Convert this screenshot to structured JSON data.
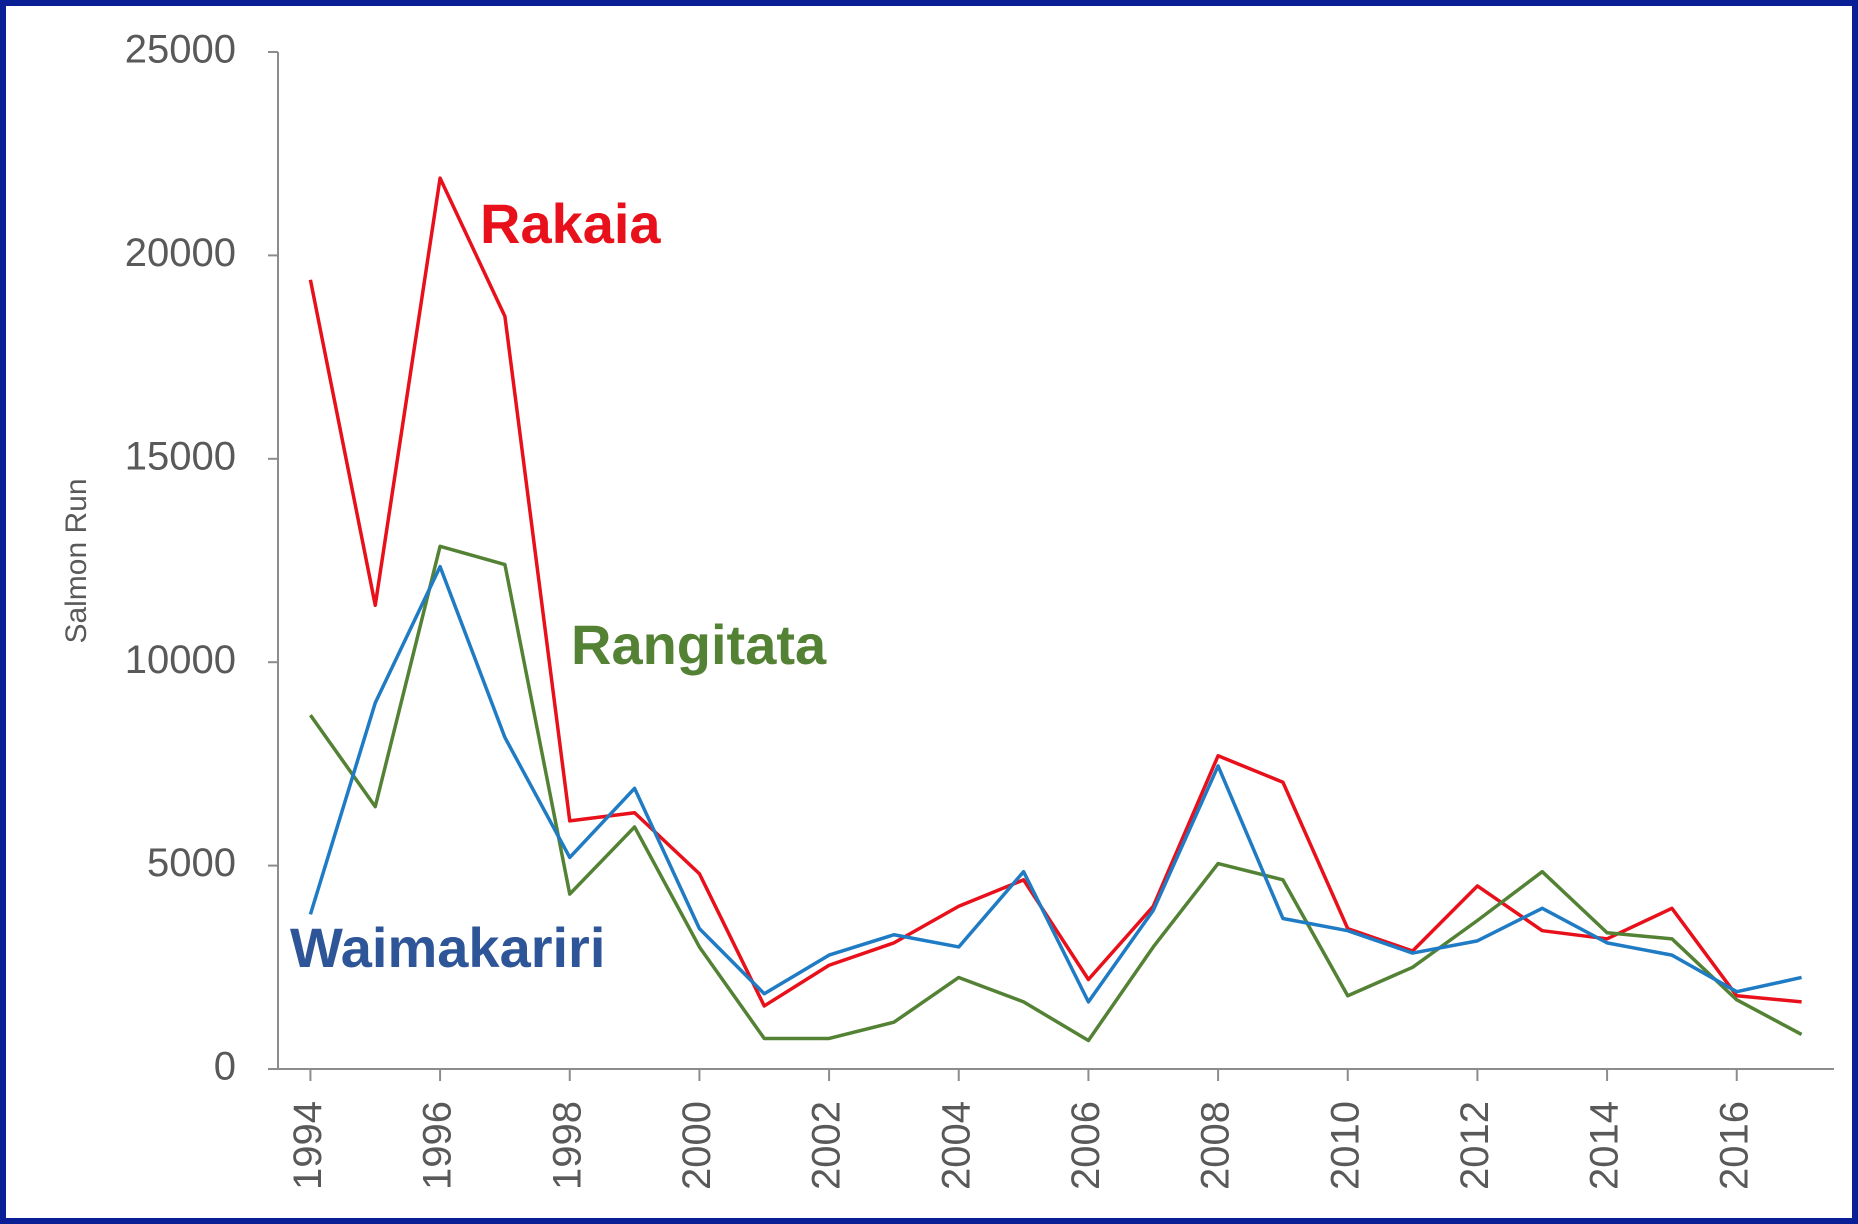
{
  "chart_data": {
    "type": "line",
    "y_label": "Salmon Run",
    "x": [
      1994,
      1995,
      1996,
      1997,
      1998,
      1999,
      2000,
      2001,
      2002,
      2003,
      2004,
      2005,
      2006,
      2007,
      2008,
      2009,
      2010,
      2011,
      2012,
      2013,
      2014,
      2015,
      2016,
      2017
    ],
    "xlim": [
      1993.5,
      2017.5
    ],
    "xticks": [
      1994,
      1996,
      1998,
      2000,
      2002,
      2004,
      2006,
      2008,
      2010,
      2012,
      2014,
      2016
    ],
    "ylim": [
      0,
      25000
    ],
    "yticks": [
      0,
      5000,
      10000,
      15000,
      20000,
      25000
    ],
    "grid": false,
    "series": [
      {
        "name": "Rakaia",
        "color": "#e8101a",
        "label_color": "#e8101a",
        "values": [
          19400,
          11400,
          21900,
          18500,
          6100,
          6300,
          4800,
          1550,
          2550,
          3100,
          4000,
          4650,
          2200,
          4000,
          7700,
          7050,
          3450,
          2900,
          4500,
          3400,
          3200,
          3950,
          1800,
          1650
        ]
      },
      {
        "name": "Rangitata",
        "color": "#548235",
        "label_color": "#548235",
        "values": [
          8700,
          6450,
          12850,
          12400,
          4300,
          5950,
          3000,
          750,
          750,
          1150,
          2250,
          1650,
          700,
          3000,
          5050,
          4650,
          1800,
          2500,
          3650,
          4850,
          3350,
          3200,
          1700,
          850
        ]
      },
      {
        "name": "Waimakariri",
        "color": "#1f7bc4",
        "label_color": "#2e5597",
        "values": [
          3800,
          9000,
          12350,
          8150,
          5200,
          6900,
          3450,
          1850,
          2800,
          3300,
          3000,
          4850,
          1650,
          3900,
          7450,
          3700,
          3400,
          2850,
          3150,
          3950,
          3100,
          2800,
          1900,
          2250
        ]
      }
    ]
  }
}
